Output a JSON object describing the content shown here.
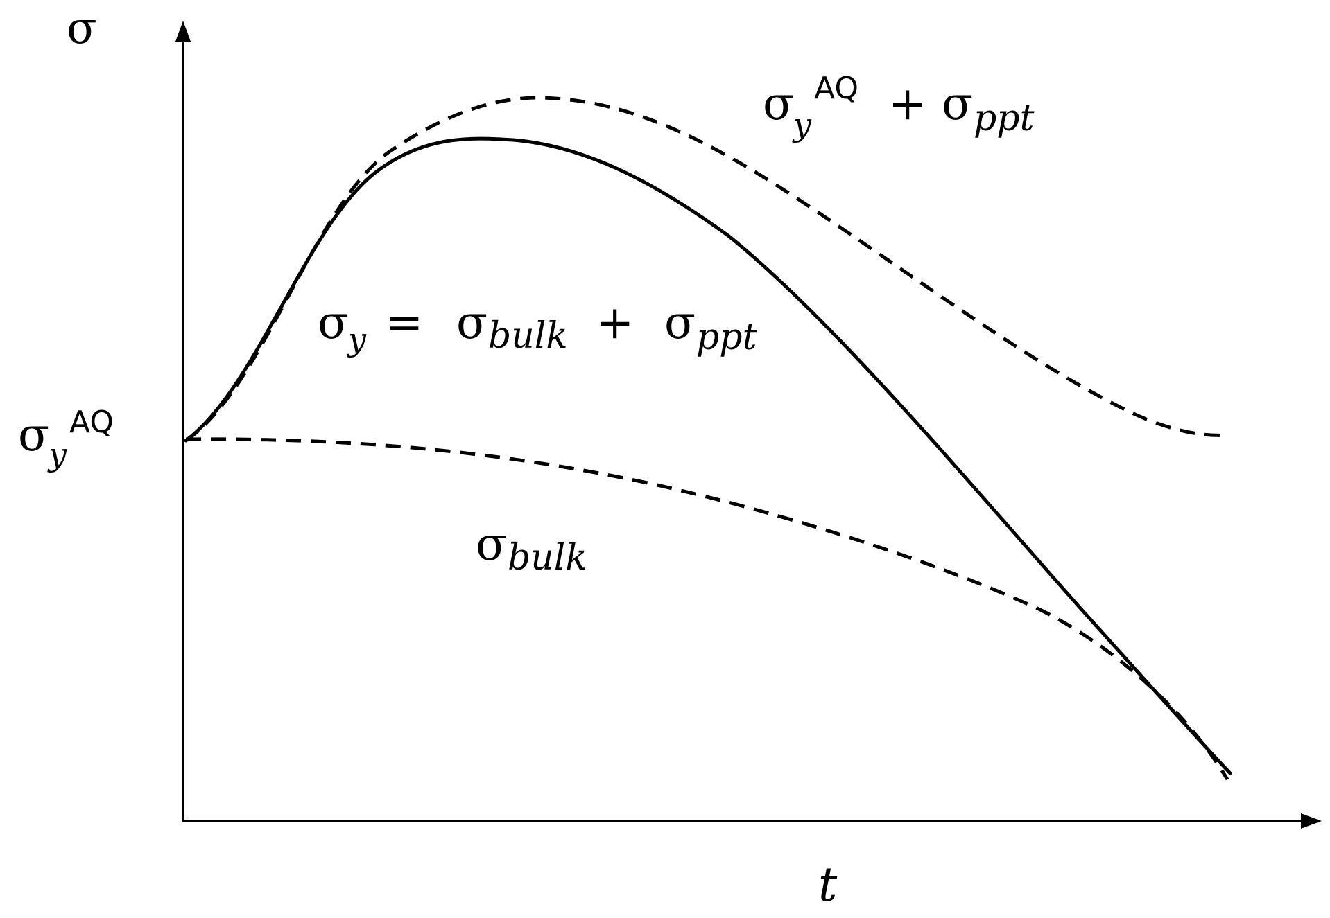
{
  "axes": {
    "y_label": "σ",
    "x_label": "t",
    "y_tick_base": "σ",
    "y_tick_sub": "y",
    "y_tick_sup": "AQ"
  },
  "labels": {
    "upper": {
      "sigma1": "σ",
      "sub1": "y",
      "sup1": "AQ",
      "op": " + ",
      "sigma2": "σ",
      "sub2": "ppt"
    },
    "middle": {
      "sigma1": "σ",
      "sub1": "y",
      "eq": " = ",
      "sigma2": "σ",
      "sub2": "bulk",
      "op": " + ",
      "sigma3": "σ",
      "sub3": "ppt"
    },
    "lower": {
      "sigma": "σ",
      "sub": "bulk"
    }
  },
  "curves": [
    {
      "id": "sigma-y-aq-plus-ppt",
      "style": "dashed"
    },
    {
      "id": "sigma-y",
      "style": "solid"
    },
    {
      "id": "sigma-bulk",
      "style": "dashed"
    }
  ]
}
